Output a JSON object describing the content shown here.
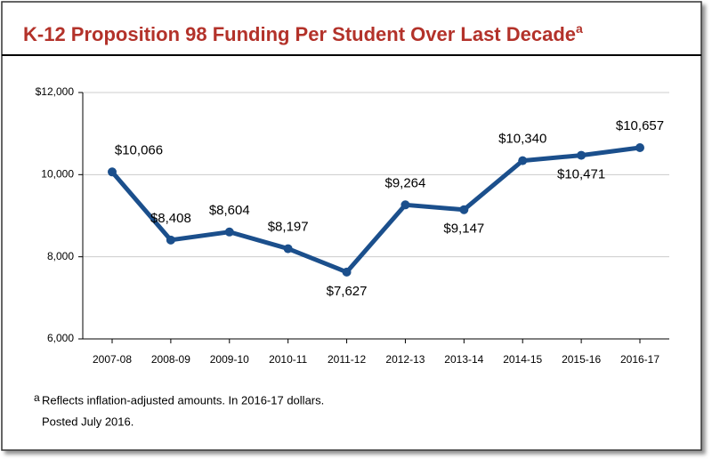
{
  "chart_data": {
    "type": "line",
    "title": "K-12 Proposition 98 Funding Per Student Over Last Decade",
    "title_superscript": "a",
    "categories": [
      "2007-08",
      "2008-09",
      "2009-10",
      "2010-11",
      "2011-12",
      "2012-13",
      "2013-14",
      "2014-15",
      "2015-16",
      "2016-17"
    ],
    "series": [
      {
        "name": "Funding per student",
        "color": "#1b4f8c",
        "values": [
          10066,
          8408,
          8604,
          8197,
          7627,
          9264,
          9147,
          10340,
          10471,
          10657
        ],
        "value_labels": [
          "$10,066",
          "$8,408",
          "$8,604",
          "$8,197",
          "$7,627",
          "$9,264",
          "$9,147",
          "$10,340",
          "$10,471",
          "$10,657"
        ]
      }
    ],
    "ylim": [
      6000,
      12000
    ],
    "yticks": [
      {
        "value": 6000,
        "label": "6,000"
      },
      {
        "value": 8000,
        "label": "8,000"
      },
      {
        "value": 10000,
        "label": "10,000"
      },
      {
        "value": 12000,
        "label": "$12,000"
      }
    ],
    "grid": true,
    "title_color": "#b3322a",
    "footnote_marker": "a",
    "footnote": "Reflects inflation-adjusted amounts. In 2016-17 dollars.",
    "posted": "Posted July 2016."
  }
}
